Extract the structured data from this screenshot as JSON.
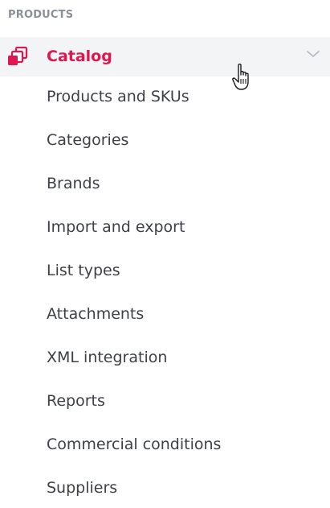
{
  "section": {
    "label": "PRODUCTS"
  },
  "group": {
    "label": "Catalog",
    "accent_color": "#e2164f",
    "icon": "catalog-stack-icon",
    "expand_icon": "chevron-down-icon"
  },
  "items": [
    {
      "label": "Products and SKUs"
    },
    {
      "label": "Categories"
    },
    {
      "label": "Brands"
    },
    {
      "label": "Import and export"
    },
    {
      "label": "List types"
    },
    {
      "label": "Attachments"
    },
    {
      "label": "XML integration"
    },
    {
      "label": "Reports"
    },
    {
      "label": "Commercial conditions"
    },
    {
      "label": "Suppliers"
    }
  ]
}
